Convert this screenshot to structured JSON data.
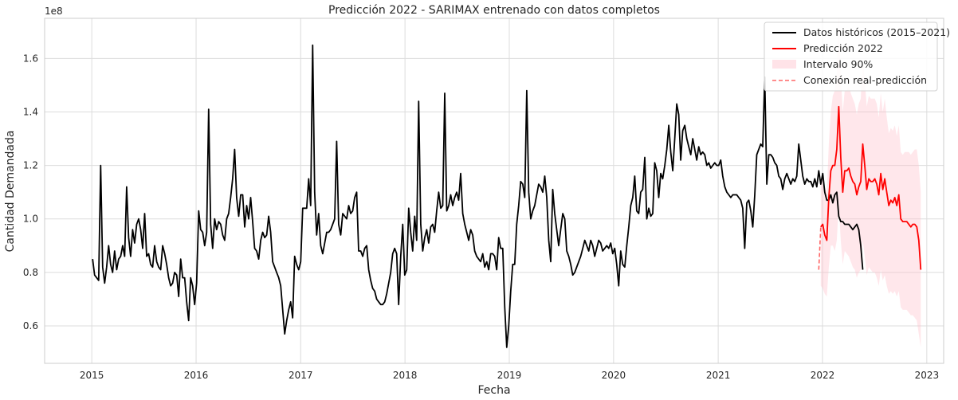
{
  "chart_data": {
    "type": "line",
    "title": "Predicción 2022 - SARIMAX entrenado con datos completos",
    "xlabel": "Fecha",
    "ylabel": "Cantidad Demandada",
    "y_offset_label": "1e8",
    "y_scale": 100000000,
    "xlim": [
      "2014-07-20",
      "2023-03-01"
    ],
    "ylim": [
      0.46,
      1.75
    ],
    "x_ticks": [
      "2015",
      "2016",
      "2017",
      "2018",
      "2019",
      "2020",
      "2021",
      "2022",
      "2023"
    ],
    "y_ticks": [
      "0.6",
      "0.8",
      "1.0",
      "1.2",
      "1.4",
      "1.6"
    ],
    "grid": true,
    "legend_position": "top-right",
    "legend": [
      {
        "label": "Datos históricos (2015–2021)",
        "kind": "line",
        "color": "#000000"
      },
      {
        "label": "Predicción 2022",
        "kind": "line",
        "color": "#ff0000"
      },
      {
        "label": "Intervalo 90%",
        "kind": "patch",
        "color": "#ffc0cb"
      },
      {
        "label": "Conexión real-predicción",
        "kind": "dashed",
        "color": "#ff0000"
      }
    ],
    "series": [
      {
        "name": "Datos históricos (2015–2021)",
        "color": "#000000",
        "start": "2015-01-04",
        "step_days": 7,
        "values": [
          0.85,
          0.79,
          0.78,
          0.77,
          1.2,
          0.82,
          0.76,
          0.82,
          0.9,
          0.83,
          0.8,
          0.88,
          0.81,
          0.85,
          0.86,
          0.9,
          0.86,
          1.12,
          0.93,
          0.86,
          0.96,
          0.91,
          0.98,
          1.0,
          0.96,
          0.89,
          1.02,
          0.86,
          0.87,
          0.83,
          0.82,
          0.9,
          0.84,
          0.82,
          0.81,
          0.9,
          0.87,
          0.83,
          0.78,
          0.75,
          0.76,
          0.8,
          0.79,
          0.71,
          0.85,
          0.78,
          0.78,
          0.69,
          0.62,
          0.78,
          0.75,
          0.68,
          0.76,
          1.03,
          0.96,
          0.95,
          0.9,
          0.95,
          1.41,
          0.98,
          0.89,
          1.0,
          0.96,
          0.99,
          0.98,
          0.94,
          0.92,
          1.0,
          1.02,
          1.08,
          1.15,
          1.26,
          1.08,
          1.01,
          1.09,
          1.09,
          0.97,
          1.05,
          1.0,
          1.08,
          0.99,
          0.89,
          0.88,
          0.85,
          0.92,
          0.95,
          0.93,
          0.94,
          1.01,
          0.95,
          0.84,
          0.82,
          0.8,
          0.78,
          0.75,
          0.66,
          0.57,
          0.62,
          0.66,
          0.69,
          0.63,
          0.86,
          0.83,
          0.81,
          0.84,
          1.04,
          1.04,
          1.04,
          1.15,
          1.05,
          1.65,
          1.1,
          0.94,
          1.02,
          0.9,
          0.87,
          0.91,
          0.95,
          0.95,
          0.96,
          0.98,
          1.0,
          1.29,
          0.98,
          0.94,
          1.02,
          1.01,
          1.0,
          1.05,
          1.02,
          1.03,
          1.08,
          1.1,
          0.88,
          0.88,
          0.86,
          0.89,
          0.9,
          0.81,
          0.77,
          0.74,
          0.73,
          0.7,
          0.69,
          0.68,
          0.68,
          0.69,
          0.72,
          0.76,
          0.8,
          0.87,
          0.89,
          0.87,
          0.68,
          0.86,
          0.98,
          0.79,
          0.81,
          1.04,
          0.95,
          0.88,
          1.01,
          0.92,
          1.44,
          0.98,
          0.88,
          0.93,
          0.96,
          0.91,
          0.97,
          0.98,
          0.95,
          1.03,
          1.1,
          1.04,
          1.05,
          1.47,
          1.03,
          1.05,
          1.09,
          1.05,
          1.08,
          1.1,
          1.07,
          1.17,
          1.02,
          0.98,
          0.95,
          0.92,
          0.96,
          0.94,
          0.88,
          0.86,
          0.85,
          0.84,
          0.87,
          0.82,
          0.84,
          0.81,
          0.87,
          0.87,
          0.86,
          0.81,
          0.93,
          0.89,
          0.89,
          0.67,
          0.52,
          0.6,
          0.73,
          0.83,
          0.83,
          0.98,
          1.05,
          1.14,
          1.13,
          1.08,
          1.48,
          1.1,
          1.0,
          1.03,
          1.05,
          1.09,
          1.13,
          1.12,
          1.1,
          1.16,
          1.08,
          0.92,
          0.84,
          1.11,
          1.02,
          0.96,
          0.9,
          0.96,
          1.02,
          1.0,
          0.88,
          0.86,
          0.83,
          0.79,
          0.8,
          0.82,
          0.84,
          0.86,
          0.89,
          0.92,
          0.9,
          0.88,
          0.92,
          0.9,
          0.86,
          0.89,
          0.92,
          0.91,
          0.88,
          0.89,
          0.9,
          0.89,
          0.91,
          0.87,
          0.89,
          0.83,
          0.75,
          0.88,
          0.83,
          0.82,
          0.9,
          0.97,
          1.05,
          1.08,
          1.16,
          1.03,
          1.02,
          1.1,
          1.11,
          1.23,
          1.0,
          1.04,
          1.01,
          1.02,
          1.21,
          1.18,
          1.08,
          1.17,
          1.15,
          1.2,
          1.26,
          1.35,
          1.25,
          1.18,
          1.3,
          1.43,
          1.39,
          1.22,
          1.33,
          1.35,
          1.3,
          1.27,
          1.24,
          1.3,
          1.26,
          1.22,
          1.27,
          1.24,
          1.25,
          1.24,
          1.2,
          1.21,
          1.19,
          1.2,
          1.21,
          1.2,
          1.2,
          1.22,
          1.16,
          1.12,
          1.1,
          1.09,
          1.08,
          1.09,
          1.09,
          1.09,
          1.08,
          1.07,
          1.04,
          0.89,
          1.06,
          1.07,
          1.03,
          0.97,
          1.09,
          1.24,
          1.26,
          1.28,
          1.27,
          1.53,
          1.13,
          1.24,
          1.24,
          1.23,
          1.21,
          1.2,
          1.16,
          1.15,
          1.11,
          1.15,
          1.17,
          1.15,
          1.13,
          1.15,
          1.14,
          1.16,
          1.28,
          1.22,
          1.16,
          1.13,
          1.15,
          1.14,
          1.14,
          1.12,
          1.15,
          1.12,
          1.18,
          1.13,
          1.17,
          1.1,
          1.07,
          1.07,
          1.09,
          1.06,
          1.09,
          1.1,
          1.01,
          0.99,
          0.99,
          0.98,
          0.98,
          0.98,
          0.97,
          0.96,
          0.97,
          0.98,
          0.96,
          0.9,
          0.81
        ]
      },
      {
        "name": "Predicción 2022",
        "color": "#ff0000",
        "start": "2021-12-26",
        "step_days": 7,
        "values": [
          0.97,
          0.98,
          0.94,
          0.92,
          1.08,
          1.18,
          1.2,
          1.2,
          1.26,
          1.42,
          1.23,
          1.1,
          1.18,
          1.18,
          1.19,
          1.16,
          1.14,
          1.13,
          1.09,
          1.12,
          1.14,
          1.28,
          1.2,
          1.11,
          1.15,
          1.14,
          1.14,
          1.15,
          1.13,
          1.09,
          1.17,
          1.11,
          1.15,
          1.1,
          1.05,
          1.07,
          1.06,
          1.08,
          1.05,
          1.09,
          1.0,
          0.99,
          0.99,
          0.99,
          0.98,
          0.97,
          0.98,
          0.98,
          0.97,
          0.92,
          0.81
        ]
      },
      {
        "name": "Intervalo 90%",
        "start": "2021-12-26",
        "step_days": 7,
        "lower": [
          0.75,
          0.74,
          0.72,
          0.71,
          0.82,
          0.9,
          0.9,
          0.88,
          0.92,
          1.05,
          0.92,
          0.83,
          0.88,
          0.87,
          0.86,
          0.84,
          0.82,
          0.81,
          0.78,
          0.8,
          0.81,
          0.92,
          0.86,
          0.79,
          0.82,
          0.81,
          0.8,
          0.8,
          0.78,
          0.75,
          0.81,
          0.77,
          0.79,
          0.75,
          0.72,
          0.73,
          0.72,
          0.73,
          0.71,
          0.73,
          0.67,
          0.66,
          0.66,
          0.66,
          0.65,
          0.64,
          0.64,
          0.63,
          0.62,
          0.57,
          0.52
        ],
        "upper": [
          1.14,
          1.15,
          1.12,
          1.1,
          1.28,
          1.4,
          1.46,
          1.48,
          1.55,
          1.75,
          1.54,
          1.4,
          1.48,
          1.48,
          1.5,
          1.47,
          1.45,
          1.43,
          1.39,
          1.43,
          1.45,
          1.6,
          1.52,
          1.42,
          1.46,
          1.45,
          1.45,
          1.45,
          1.43,
          1.38,
          1.47,
          1.4,
          1.45,
          1.38,
          1.32,
          1.34,
          1.33,
          1.35,
          1.31,
          1.35,
          1.25,
          1.24,
          1.25,
          1.25,
          1.25,
          1.24,
          1.25,
          1.26,
          1.26,
          1.2,
          1.1
        ]
      },
      {
        "name": "Conexión real-predicción",
        "color": "#ff0000",
        "dashed": true,
        "x": [
          "2021-12-19",
          "2021-12-26"
        ],
        "values": [
          0.81,
          0.97
        ]
      }
    ]
  }
}
